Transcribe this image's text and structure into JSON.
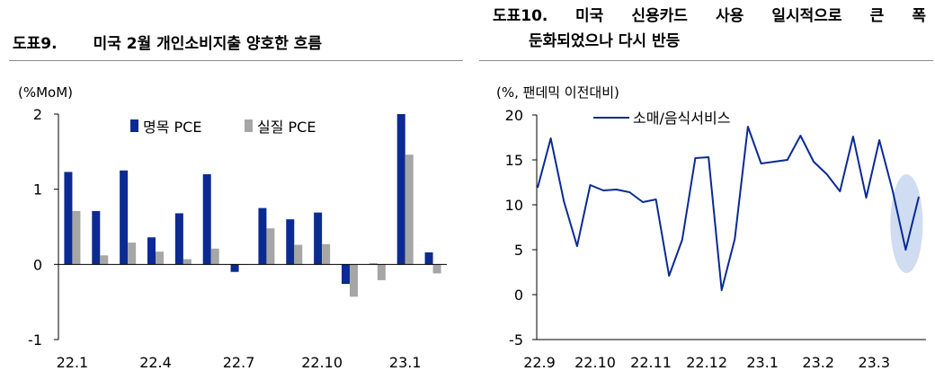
{
  "chart_data": [
    {
      "type": "bar",
      "figure_label": "도표9.",
      "title": "미국 2월 개인소비지출 양호한 흐름",
      "unit_label": "(%MoM)",
      "ylim": [
        -1,
        2
      ],
      "yticks": [
        "-1",
        "0",
        "1",
        "2"
      ],
      "xtick_labels": [
        "22.1",
        "22.4",
        "22.7",
        "22.10",
        "23.1"
      ],
      "categories": [
        "22.1",
        "22.2",
        "22.3",
        "22.4",
        "22.5",
        "22.6",
        "22.7",
        "22.8",
        "22.9",
        "22.10",
        "22.11",
        "22.12",
        "23.1",
        "23.2"
      ],
      "series": [
        {
          "name": "명목 PCE",
          "color": "#0b2a92",
          "values": [
            1.23,
            0.71,
            1.25,
            0.36,
            0.68,
            1.2,
            -0.1,
            0.75,
            0.6,
            0.69,
            -0.26,
            0.01,
            2.0,
            0.16
          ]
        },
        {
          "name": "실질 PCE",
          "color": "#a6a6a6",
          "values": [
            0.71,
            0.12,
            0.29,
            0.17,
            0.07,
            0.21,
            0.0,
            0.48,
            0.26,
            0.27,
            -0.43,
            -0.21,
            1.46,
            -0.12
          ]
        }
      ],
      "legend_position": "top"
    },
    {
      "type": "line",
      "figure_label": "도표10.",
      "title_line1": "미국 신용카드 사용 일시적으로 큰 폭",
      "title_line2": "둔화되었으나 다시 반등",
      "unit_label": "(%, 팬데믹 이전대비)",
      "ylim": [
        -5,
        20
      ],
      "yticks": [
        "-5",
        "0",
        "5",
        "10",
        "15",
        "20"
      ],
      "xtick_labels": [
        "22.9",
        "22.10",
        "22.11",
        "22.12",
        "23.1",
        "23.2",
        "23.3"
      ],
      "series": [
        {
          "name": "소매/음식서비스",
          "color": "#0b2a92",
          "values": [
            11.9,
            17.4,
            10.4,
            5.4,
            12.2,
            11.6,
            11.7,
            11.4,
            10.3,
            10.6,
            2.1,
            6.1,
            15.2,
            15.3,
            0.5,
            6.2,
            18.7,
            14.6,
            14.8,
            15.0,
            17.7,
            14.8,
            13.4,
            11.5,
            17.6,
            10.8,
            17.2,
            11.6,
            5.0,
            10.9
          ]
        }
      ],
      "highlight": {
        "shape": "ellipse",
        "color": "#cfdcf1"
      },
      "legend_position": "top-left"
    }
  ]
}
